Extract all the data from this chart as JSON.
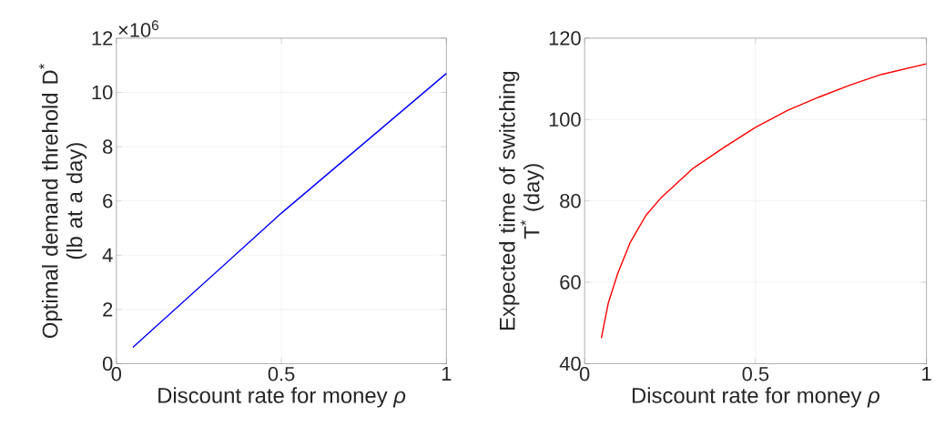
{
  "chart_data": [
    {
      "type": "line",
      "xlabel": "Discount rate for money *ρ*",
      "ylabel": "Optimal demand threhold D$^{*}$ (lb at a day)",
      "annotations": [
        "×10$^{6}$"
      ],
      "x": [
        0.05,
        0.5,
        1.0
      ],
      "series": [
        {
          "color": "#0000ff",
          "values": [
            0.6,
            5.55,
            10.7
          ]
        }
      ],
      "xlim": [
        0,
        1
      ],
      "ylim": [
        0,
        12
      ],
      "xticks": [
        0,
        0.5,
        1
      ],
      "yticks": [
        0,
        2,
        4,
        6,
        8,
        10,
        12
      ],
      "grid": true
    },
    {
      "type": "line",
      "xlabel": "Discount rate for money *ρ*",
      "ylabel": "Expected time of switching T$^{*}$ (day)",
      "x": [
        0.049,
        0.069,
        0.097,
        0.133,
        0.179,
        0.225,
        0.317,
        0.409,
        0.5,
        0.593,
        0.685,
        0.777,
        0.869,
        1.0
      ],
      "series": [
        {
          "color": "#ff0000",
          "values": [
            46.3,
            54.8,
            62.2,
            69.7,
            76.4,
            80.9,
            88.0,
            93.2,
            98.1,
            102.2,
            105.5,
            108.5,
            111.1,
            113.7
          ]
        }
      ],
      "xlim": [
        0,
        1
      ],
      "ylim": [
        40,
        120
      ],
      "xticks": [
        0,
        0.5,
        1
      ],
      "yticks": [
        40,
        60,
        80,
        100,
        120
      ],
      "grid": true
    }
  ]
}
